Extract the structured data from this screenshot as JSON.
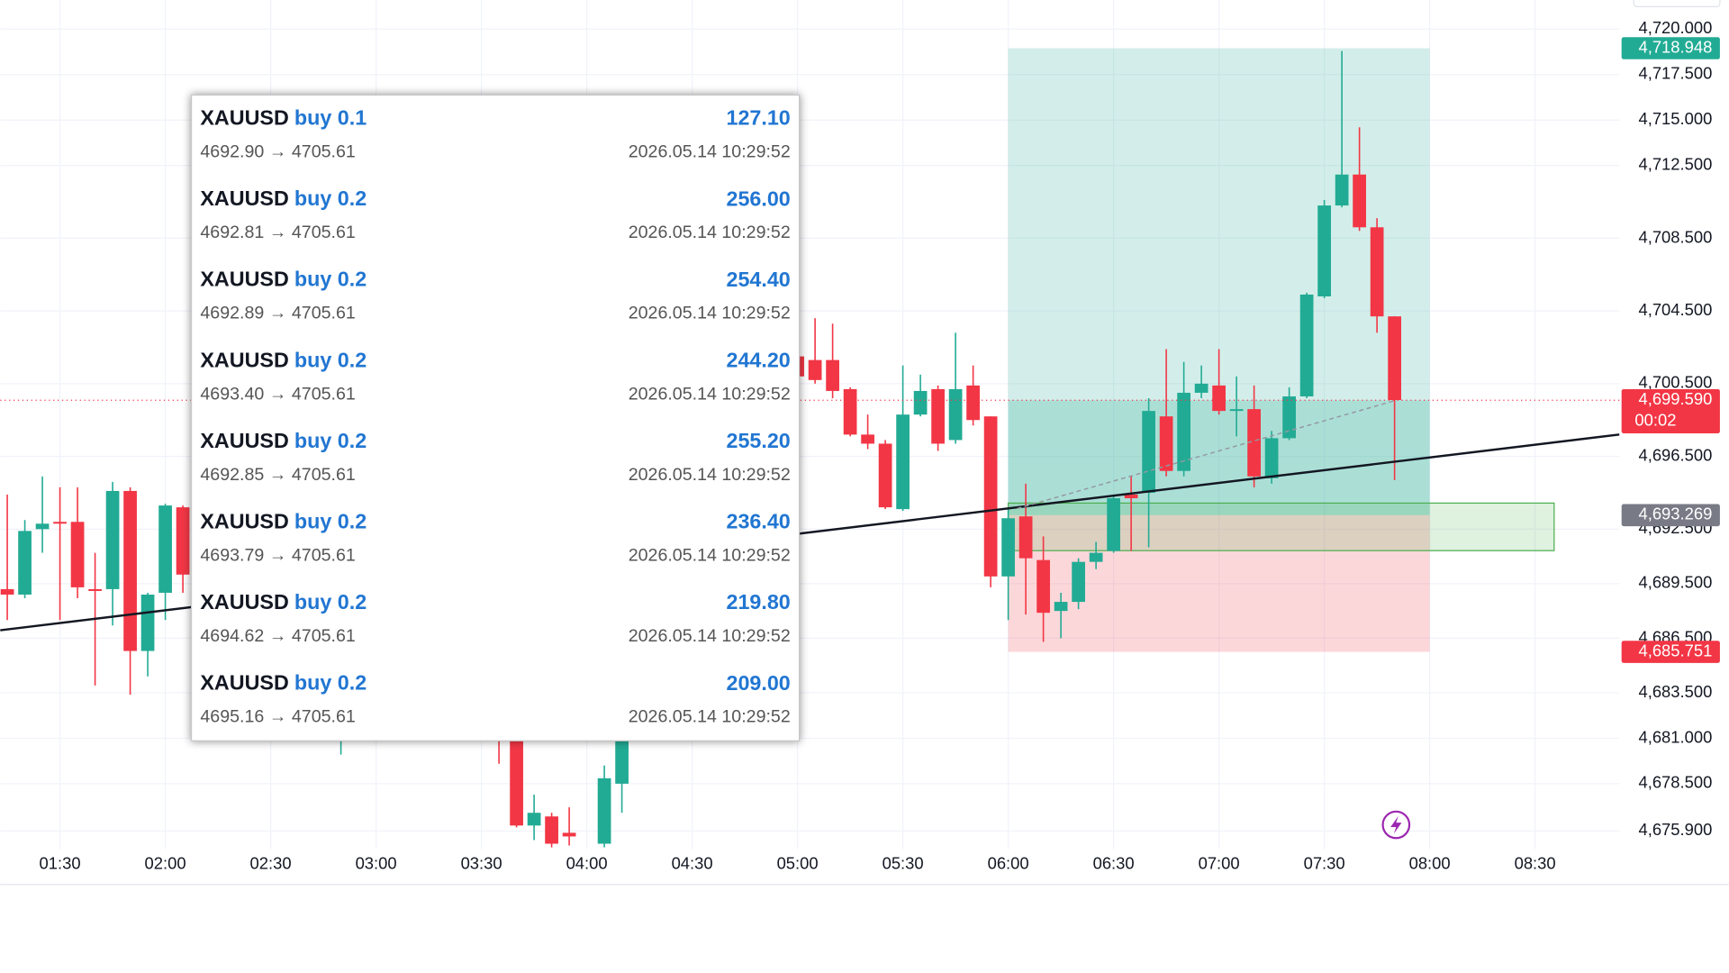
{
  "chart_data": {
    "type": "candlestick",
    "x": [
      "01:15",
      "01:20",
      "01:25",
      "01:30",
      "01:35",
      "01:40",
      "01:45",
      "01:50",
      "01:55",
      "02:00",
      "02:05",
      "02:50",
      "03:35",
      "03:40",
      "03:45",
      "03:50",
      "03:55",
      "04:05",
      "04:10",
      "05:00",
      "05:05",
      "05:10",
      "05:15",
      "05:20",
      "05:25",
      "05:30",
      "05:35",
      "05:40",
      "05:45",
      "05:50",
      "05:55",
      "06:00",
      "06:05",
      "06:10",
      "06:15",
      "06:20",
      "06:25",
      "06:30",
      "06:35",
      "06:40",
      "06:45",
      "06:50",
      "06:55",
      "07:00",
      "07:05",
      "07:10",
      "07:15",
      "07:20",
      "07:25",
      "07:30",
      "07:35",
      "07:40",
      "07:45",
      "07:50"
    ],
    "open": [
      4689.2,
      4688.9,
      4692.5,
      4692.9,
      4692.9,
      4689.2,
      4689.2,
      4694.6,
      4685.8,
      4689.0,
      4693.7,
      4683.0,
      4683.0,
      4681.5,
      4676.2,
      4676.7,
      4675.8,
      4675.2,
      4678.5,
      4702.0,
      4701.8,
      4701.8,
      4700.2,
      4697.7,
      4697.2,
      4693.6,
      4698.8,
      4700.2,
      4697.4,
      4700.4,
      4698.7,
      4689.9,
      4693.2,
      4690.8,
      4688.0,
      4688.5,
      4690.7,
      4691.3,
      4694.4,
      4694.5,
      4698.7,
      4695.7,
      4700.0,
      4700.4,
      4699.0,
      4699.1,
      4695.3,
      4697.5,
      4699.8,
      4705.3,
      4710.3,
      4712.0,
      4709.1,
      4704.2
    ],
    "high": [
      4694.4,
      4693.0,
      4695.4,
      4694.8,
      4694.8,
      4691.2,
      4695.1,
      4694.8,
      4689.0,
      4693.9,
      4693.8,
      4686.0,
      4684.0,
      4682.0,
      4677.9,
      4676.9,
      4677.2,
      4679.5,
      4682.0,
      4702.6,
      4704.1,
      4703.8,
      4700.3,
      4698.8,
      4697.4,
      4701.5,
      4701.0,
      4700.4,
      4703.3,
      4701.5,
      4698.7,
      4693.6,
      4695.0,
      4692.1,
      4689.0,
      4690.9,
      4691.8,
      4694.4,
      4695.4,
      4699.7,
      4702.4,
      4701.7,
      4701.5,
      4702.4,
      4700.9,
      4700.4,
      4697.9,
      4700.3,
      4705.5,
      4710.6,
      4718.8,
      4714.6,
      4709.6,
      4704.2
    ],
    "low": [
      4687.5,
      4688.7,
      4691.2,
      4687.5,
      4688.7,
      4683.9,
      4687.2,
      4683.4,
      4684.4,
      4687.5,
      4689.0,
      4680.1,
      4679.6,
      4676.1,
      4675.4,
      4675.0,
      4675.1,
      4675.0,
      4676.9,
      4700.5,
      4700.5,
      4699.7,
      4697.6,
      4696.9,
      4693.6,
      4693.5,
      4698.7,
      4696.8,
      4697.2,
      4698.2,
      4689.3,
      4687.5,
      4687.8,
      4686.3,
      4686.5,
      4688.1,
      4690.3,
      4691.2,
      4691.3,
      4691.5,
      4695.4,
      4695.4,
      4699.7,
      4698.8,
      4697.6,
      4694.8,
      4695.0,
      4697.4,
      4699.7,
      4705.2,
      4710.2,
      4708.9,
      4703.3,
      4695.2
    ],
    "close": [
      4688.9,
      4692.4,
      4692.8,
      4692.8,
      4689.3,
      4689.1,
      4694.6,
      4685.8,
      4688.9,
      4693.8,
      4690.0,
      4684.5,
      4681.5,
      4676.2,
      4676.9,
      4675.2,
      4675.6,
      4678.8,
      4681.2,
      4700.9,
      4700.7,
      4700.1,
      4697.7,
      4697.2,
      4693.7,
      4698.8,
      4700.1,
      4697.2,
      4700.2,
      4698.5,
      4689.9,
      4693.1,
      4690.9,
      4687.9,
      4688.5,
      4690.7,
      4691.2,
      4694.2,
      4694.2,
      4699.0,
      4695.7,
      4700.0,
      4700.5,
      4699.0,
      4699.1,
      4695.4,
      4697.5,
      4699.8,
      4705.4,
      4710.3,
      4712.0,
      4709.1,
      4704.2,
      4699.6
    ],
    "up_color": "#22ab94",
    "down_color": "#f23645",
    "xlim": [
      "01:13",
      "08:54"
    ],
    "xticks": [
      "01:30",
      "02:00",
      "02:30",
      "03:00",
      "03:30",
      "04:00",
      "04:30",
      "05:00",
      "05:30",
      "06:00",
      "06:30",
      "07:00",
      "07:30",
      "08:00",
      "08:30"
    ],
    "ylim": [
      4674.9,
      4721.6
    ],
    "yticks": [
      {
        "value": 4720.0,
        "label": "4,720.000"
      },
      {
        "value": 4717.5,
        "label": "4,717.500"
      },
      {
        "value": 4715.0,
        "label": "4,715.000"
      },
      {
        "value": 4712.5,
        "label": "4,712.500"
      },
      {
        "value": 4708.5,
        "label": "4,708.500"
      },
      {
        "value": 4704.5,
        "label": "4,704.500"
      },
      {
        "value": 4700.5,
        "label": "4,700.500"
      },
      {
        "value": 4696.5,
        "label": "4,696.500"
      },
      {
        "value": 4692.5,
        "label": "4,692.500"
      },
      {
        "value": 4689.5,
        "label": "4,689.500"
      },
      {
        "value": 4686.5,
        "label": "4,686.500"
      },
      {
        "value": 4683.5,
        "label": "4,683.500"
      },
      {
        "value": 4681.0,
        "label": "4,681.000"
      },
      {
        "value": 4678.5,
        "label": "4,678.500"
      },
      {
        "value": 4675.9,
        "label": "4,675.900"
      }
    ],
    "grid": true
  },
  "price_badges": [
    {
      "label": "4,718.948",
      "value": 4718.948,
      "color": "#22ab94"
    },
    {
      "label": "4,699.590",
      "value": 4699.59,
      "countdown": "00:02",
      "color": "#f23645"
    },
    {
      "label": "4,693.269",
      "value": 4693.269,
      "color": "#787b86"
    },
    {
      "label": "4,685.751",
      "value": 4685.751,
      "color": "#f23645"
    }
  ],
  "trades": [
    {
      "symbol": "XAUUSD",
      "side": "buy 0.1",
      "profit": "127.10",
      "prices": "4692.90 → 4705.61",
      "time": "2026.05.14 10:29:52"
    },
    {
      "symbol": "XAUUSD",
      "side": "buy 0.2",
      "profit": "256.00",
      "prices": "4692.81 → 4705.61",
      "time": "2026.05.14 10:29:52"
    },
    {
      "symbol": "XAUUSD",
      "side": "buy 0.2",
      "profit": "254.40",
      "prices": "4692.89 → 4705.61",
      "time": "2026.05.14 10:29:52"
    },
    {
      "symbol": "XAUUSD",
      "side": "buy 0.2",
      "profit": "244.20",
      "prices": "4693.40 → 4705.61",
      "time": "2026.05.14 10:29:52"
    },
    {
      "symbol": "XAUUSD",
      "side": "buy 0.2",
      "profit": "255.20",
      "prices": "4692.85 → 4705.61",
      "time": "2026.05.14 10:29:52"
    },
    {
      "symbol": "XAUUSD",
      "side": "buy 0.2",
      "profit": "236.40",
      "prices": "4693.79 → 4705.61",
      "time": "2026.05.14 10:29:52"
    },
    {
      "symbol": "XAUUSD",
      "side": "buy 0.2",
      "profit": "219.80",
      "prices": "4694.62 → 4705.61",
      "time": "2026.05.14 10:29:52"
    },
    {
      "symbol": "XAUUSD",
      "side": "buy 0.2",
      "profit": "209.00",
      "prices": "4695.16 → 4705.61",
      "time": "2026.05.14 10:29:52"
    }
  ]
}
